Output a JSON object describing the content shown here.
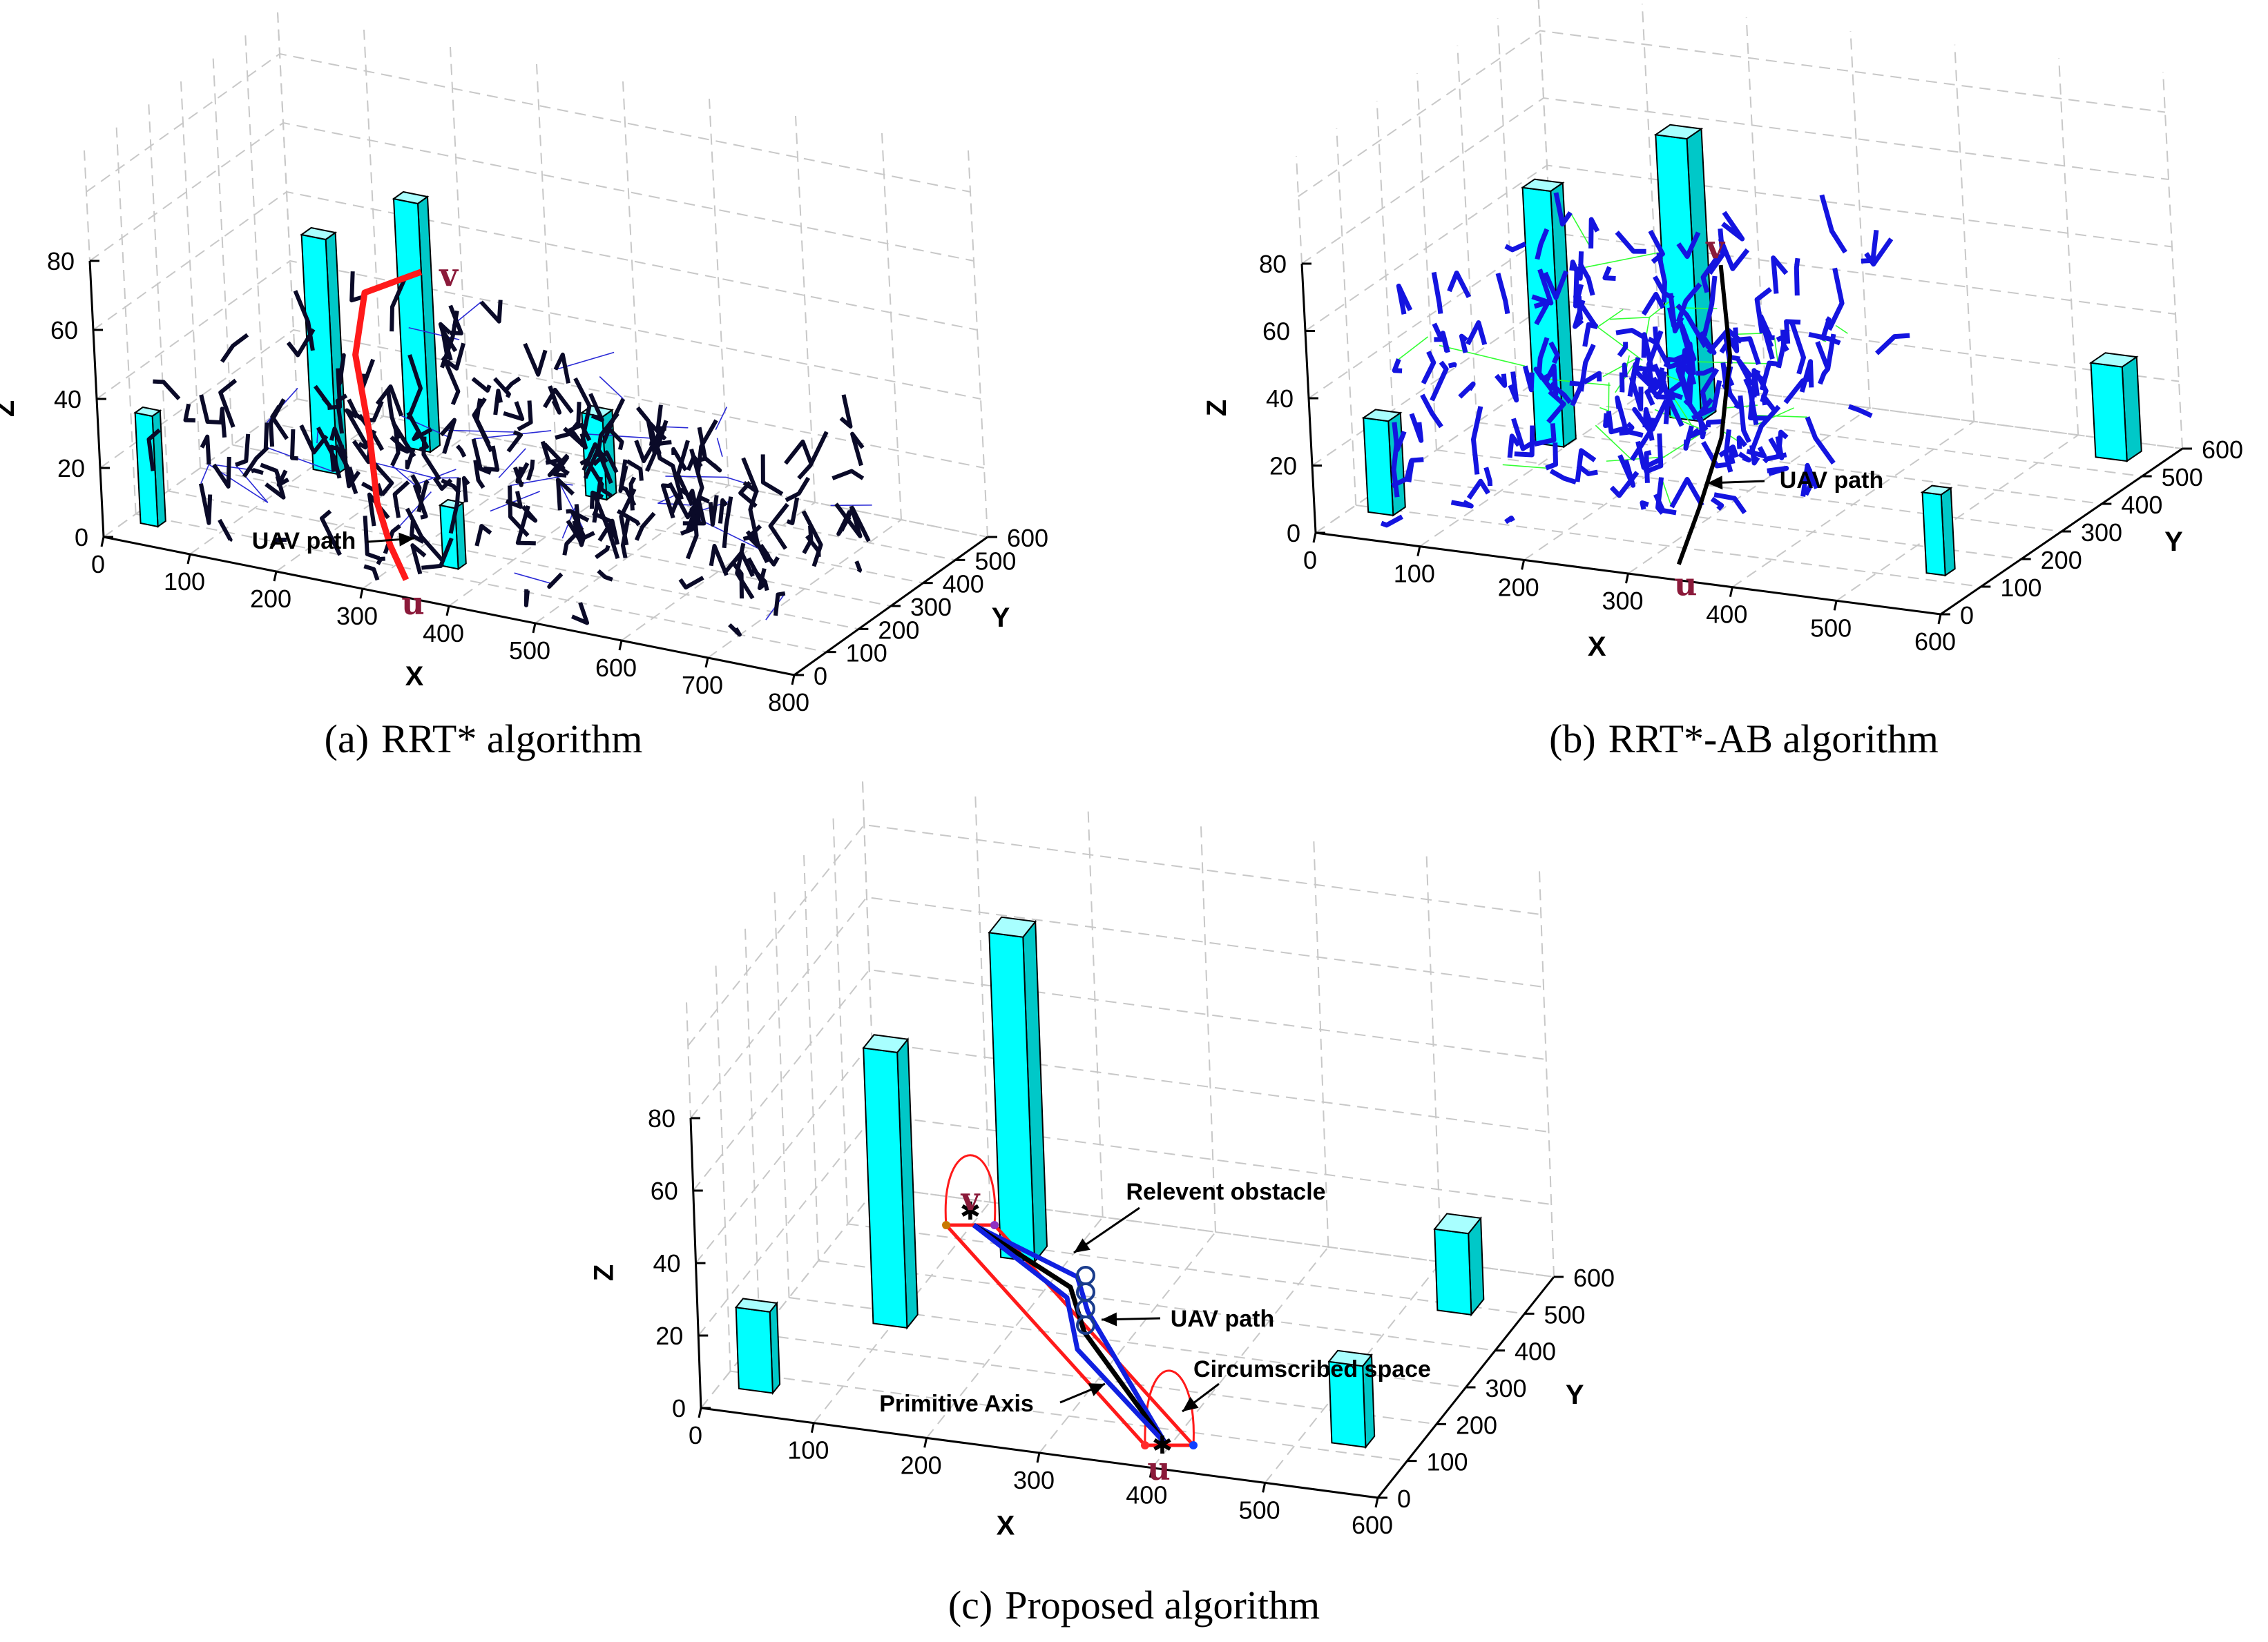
{
  "figure": {
    "colors": {
      "obstacle_front": "#00ffff",
      "obstacle_side": "#00c8c8",
      "obstacle_top": "#a8ffff",
      "tree_a_thin": "#2a2ad6",
      "tree_a_thick": "#0a0a28",
      "tree_b_thin": "#33ff33",
      "tree_b_thick": "#1414e0",
      "path_red": "#ff1a1a",
      "path_black": "#000000",
      "marker": "#8b1a3a"
    },
    "chart_data": [
      {
        "id": "a",
        "type": "scatter3d",
        "title": "RRT* algorithm",
        "caption_label": "(a)",
        "xlabel": "X",
        "ylabel": "Y",
        "zlabel": "Z",
        "xlim": [
          0,
          800
        ],
        "ylim": [
          0,
          600
        ],
        "zlim": [
          0,
          80
        ],
        "xticks": [
          "0",
          "100",
          "200",
          "300",
          "400",
          "500",
          "600",
          "700",
          "800"
        ],
        "yticks": [
          "0",
          "100",
          "200",
          "300",
          "400",
          "500",
          "600"
        ],
        "zticks": [
          "0",
          "20",
          "40",
          "60",
          "80"
        ],
        "markers": {
          "start": "u",
          "goal": "v"
        },
        "annotations": [
          "UAV path"
        ]
      },
      {
        "id": "b",
        "type": "scatter3d",
        "title": "RRT*-AB algorithm",
        "caption_label": "(b)",
        "xlabel": "X",
        "ylabel": "Y",
        "zlabel": "Z",
        "xlim": [
          0,
          600
        ],
        "ylim": [
          0,
          600
        ],
        "zlim": [
          0,
          80
        ],
        "xticks": [
          "0",
          "100",
          "200",
          "300",
          "400",
          "500",
          "600"
        ],
        "yticks": [
          "0",
          "100",
          "200",
          "300",
          "400",
          "500",
          "600"
        ],
        "zticks": [
          "0",
          "20",
          "40",
          "60",
          "80"
        ],
        "markers": {
          "start": "u",
          "goal": "v"
        },
        "annotations": [
          "UAV path"
        ]
      },
      {
        "id": "c",
        "type": "scatter3d",
        "title": "Proposed algorithm",
        "caption_label": "(c)",
        "xlabel": "X",
        "ylabel": "Y",
        "zlabel": "Z",
        "xlim": [
          0,
          600
        ],
        "ylim": [
          0,
          600
        ],
        "zlim": [
          0,
          80
        ],
        "xticks": [
          "0",
          "100",
          "200",
          "300",
          "400",
          "500",
          "600"
        ],
        "yticks": [
          "0",
          "100",
          "200",
          "300",
          "400",
          "500",
          "600"
        ],
        "zticks": [
          "0",
          "20",
          "40",
          "60",
          "80"
        ],
        "markers": {
          "start": "u",
          "goal": "v"
        },
        "annotations": [
          "Relevent obstacle",
          "UAV path",
          "Circumscribed space",
          "Primitive Axis"
        ]
      }
    ]
  }
}
